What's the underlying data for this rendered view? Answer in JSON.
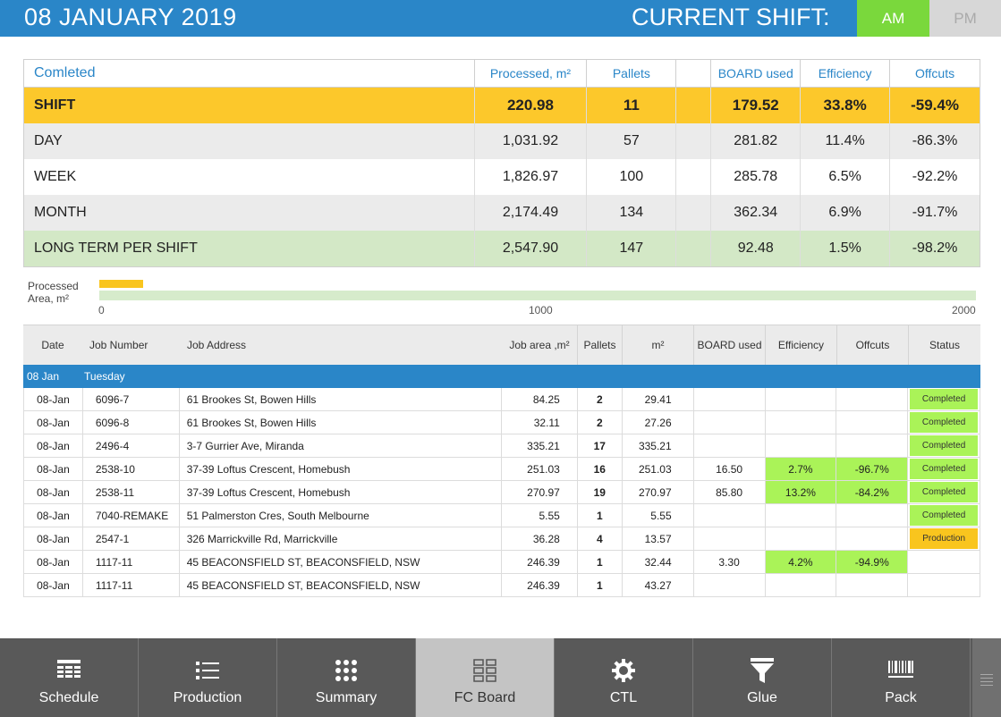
{
  "header": {
    "date": "08 JANUARY 2019",
    "shift_label": "CURRENT SHIFT:",
    "am_label": "AM",
    "pm_label": "PM",
    "active_shift": "AM",
    "am_color": "#7ad83c",
    "bar_color": "#2a86c8"
  },
  "summary": {
    "headers": [
      "Comleted",
      "Processed, m²",
      "Pallets",
      "",
      "BOARD used",
      "Efficiency",
      "Offcuts"
    ],
    "rows": [
      {
        "label": "SHIFT",
        "processed": "220.98",
        "pallets": "11",
        "board": "179.52",
        "efficiency": "33.8%",
        "offcuts": "-59.4%"
      },
      {
        "label": "DAY",
        "processed": "1,031.92",
        "pallets": "57",
        "board": "281.82",
        "efficiency": "11.4%",
        "offcuts": "-86.3%"
      },
      {
        "label": "WEEK",
        "processed": "1,826.97",
        "pallets": "100",
        "board": "285.78",
        "efficiency": "6.5%",
        "offcuts": "-92.2%"
      },
      {
        "label": "MONTH",
        "processed": "2,174.49",
        "pallets": "134",
        "board": "362.34",
        "efficiency": "6.9%",
        "offcuts": "-91.7%"
      },
      {
        "label": "LONG TERM PER SHIFT",
        "processed": "2,547.90",
        "pallets": "147",
        "board": "92.48",
        "efficiency": "1.5%",
        "offcuts": "-98.2%"
      }
    ]
  },
  "progress": {
    "label_line1": "Processed",
    "label_line2": "Area, m²",
    "value": 220.98,
    "max": 2000,
    "ticks": [
      "0",
      "1000",
      "2000"
    ]
  },
  "jobs": {
    "headers": [
      "Date",
      "Job Number",
      "Job Address",
      "Job area ,m²",
      "Pallets",
      "m²",
      "BOARD used",
      "Efficiency",
      "Offcuts",
      "Status"
    ],
    "group": {
      "date": "08 Jan",
      "day": "Tuesday"
    },
    "rows": [
      {
        "date": "08-Jan",
        "job": "6096-7",
        "address": "61 Brookes St, Bowen Hills",
        "area": "84.25",
        "pallets": "2",
        "m2": "29.41",
        "board": "",
        "efficiency": "",
        "offcuts": "",
        "status": "Completed"
      },
      {
        "date": "08-Jan",
        "job": "6096-8",
        "address": "61 Brookes St, Bowen Hills",
        "area": "32.11",
        "pallets": "2",
        "m2": "27.26",
        "board": "",
        "efficiency": "",
        "offcuts": "",
        "status": "Completed"
      },
      {
        "date": "08-Jan",
        "job": "2496-4",
        "address": "3-7 Gurrier Ave, Miranda",
        "area": "335.21",
        "pallets": "17",
        "m2": "335.21",
        "board": "",
        "efficiency": "",
        "offcuts": "",
        "status": "Completed"
      },
      {
        "date": "08-Jan",
        "job": "2538-10",
        "address": "37-39 Loftus Crescent, Homebush",
        "area": "251.03",
        "pallets": "16",
        "m2": "251.03",
        "board": "16.50",
        "efficiency": "2.7%",
        "offcuts": "-96.7%",
        "status": "Completed"
      },
      {
        "date": "08-Jan",
        "job": "2538-11",
        "address": "37-39 Loftus Crescent, Homebush",
        "area": "270.97",
        "pallets": "19",
        "m2": "270.97",
        "board": "85.80",
        "efficiency": "13.2%",
        "offcuts": "-84.2%",
        "status": "Completed"
      },
      {
        "date": "08-Jan",
        "job": "7040-REMAKE",
        "address": "51 Palmerston Cres, South Melbourne",
        "area": "5.55",
        "pallets": "1",
        "m2": "5.55",
        "board": "",
        "efficiency": "",
        "offcuts": "",
        "status": "Completed"
      },
      {
        "date": "08-Jan",
        "job": "2547-1",
        "address": "326 Marrickville Rd, Marrickville",
        "area": "36.28",
        "pallets": "4",
        "m2": "13.57",
        "board": "",
        "efficiency": "",
        "offcuts": "",
        "status": "Production"
      },
      {
        "date": "08-Jan",
        "job": "1117-11",
        "address": "45 BEACONSFIELD ST, BEACONSFIELD, NSW",
        "area": "246.39",
        "pallets": "1",
        "m2": "32.44",
        "board": "3.30",
        "efficiency": "4.2%",
        "offcuts": "-94.9%",
        "status": ""
      },
      {
        "date": "08-Jan",
        "job": "1117-11",
        "address": "45 BEACONSFIELD ST, BEACONSFIELD, NSW",
        "area": "246.39",
        "pallets": "1",
        "m2": "43.27",
        "board": "",
        "efficiency": "",
        "offcuts": "",
        "status": ""
      }
    ]
  },
  "nav": {
    "items": [
      {
        "label": "Schedule",
        "icon": "schedule-icon"
      },
      {
        "label": "Production",
        "icon": "list-icon"
      },
      {
        "label": "Summary",
        "icon": "dots-grid-icon"
      },
      {
        "label": "FC Board",
        "icon": "board-grid-icon"
      },
      {
        "label": "CTL",
        "icon": "gear-icon"
      },
      {
        "label": "Glue",
        "icon": "funnel-icon"
      },
      {
        "label": "Pack",
        "icon": "barcode-icon"
      }
    ],
    "active": "FC Board"
  }
}
